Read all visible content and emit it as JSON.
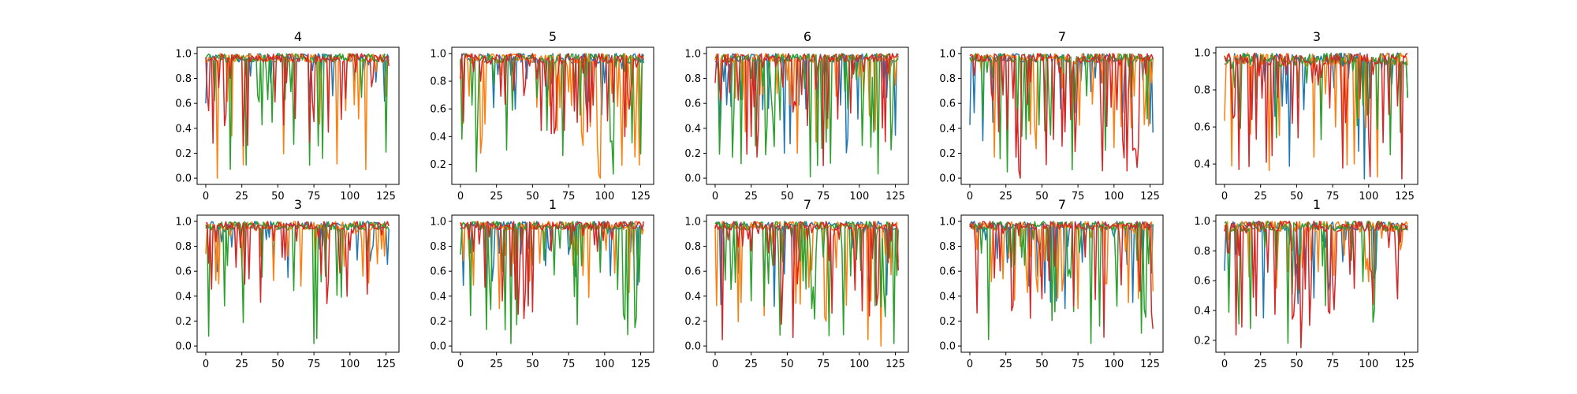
{
  "figure": {
    "background": "#ffffff"
  },
  "series_colors": [
    "#1f77b4",
    "#ff7f0e",
    "#2ca02c",
    "#d62728"
  ],
  "chart_data": [
    {
      "type": "line",
      "title": "4",
      "n_points": 128,
      "xlim": [
        -6,
        134
      ],
      "ylim": [
        -0.05,
        1.05
      ],
      "xticks": [
        0,
        25,
        50,
        75,
        100,
        125
      ],
      "yticks": [
        0.0,
        0.2,
        0.4,
        0.6,
        0.8,
        1.0
      ],
      "ytick_labels": [
        "0.0",
        "0.2",
        "0.4",
        "0.6",
        "0.8",
        "1.0"
      ],
      "grid": false,
      "series": [
        {
          "color": "#1f77b4",
          "min": 0.6,
          "dip_rate": 0.12,
          "seed": 11
        },
        {
          "color": "#ff7f0e",
          "min": 0.0,
          "dip_rate": 0.1,
          "seed": 12
        },
        {
          "color": "#2ca02c",
          "min": 0.07,
          "dip_rate": 0.12,
          "seed": 13
        },
        {
          "color": "#d62728",
          "min": 0.26,
          "dip_rate": 0.18,
          "seed": 14
        }
      ]
    },
    {
      "type": "line",
      "title": "5",
      "n_points": 128,
      "xlim": [
        -6,
        134
      ],
      "ylim": [
        0.055,
        1.045
      ],
      "xticks": [
        0,
        25,
        50,
        75,
        100,
        125
      ],
      "yticks": [
        0.2,
        0.4,
        0.6,
        0.8,
        1.0
      ],
      "ytick_labels": [
        "0.2",
        "0.4",
        "0.6",
        "0.8",
        "1.0"
      ],
      "grid": false,
      "series": [
        {
          "color": "#1f77b4",
          "min": 0.55,
          "dip_rate": 0.14,
          "seed": 21
        },
        {
          "color": "#ff7f0e",
          "min": 0.1,
          "dip_rate": 0.2,
          "seed": 22
        },
        {
          "color": "#2ca02c",
          "min": 0.13,
          "dip_rate": 0.22,
          "seed": 23
        },
        {
          "color": "#d62728",
          "min": 0.4,
          "dip_rate": 0.3,
          "seed": 24
        }
      ]
    },
    {
      "type": "line",
      "title": "6",
      "n_points": 128,
      "xlim": [
        -6,
        134
      ],
      "ylim": [
        -0.05,
        1.05
      ],
      "xticks": [
        0,
        25,
        50,
        75,
        100,
        125
      ],
      "yticks": [
        0.0,
        0.2,
        0.4,
        0.6,
        0.8,
        1.0
      ],
      "ytick_labels": [
        "0.0",
        "0.2",
        "0.4",
        "0.6",
        "0.8",
        "1.0"
      ],
      "grid": false,
      "series": [
        {
          "color": "#1f77b4",
          "min": 0.2,
          "dip_rate": 0.18,
          "seed": 31
        },
        {
          "color": "#ff7f0e",
          "min": 0.2,
          "dip_rate": 0.18,
          "seed": 32
        },
        {
          "color": "#2ca02c",
          "min": 0.01,
          "dip_rate": 0.2,
          "seed": 33
        },
        {
          "color": "#d62728",
          "min": 0.1,
          "dip_rate": 0.3,
          "seed": 34
        }
      ]
    },
    {
      "type": "line",
      "title": "7",
      "n_points": 128,
      "xlim": [
        -6,
        134
      ],
      "ylim": [
        -0.05,
        1.05
      ],
      "xticks": [
        0,
        25,
        50,
        75,
        100,
        125
      ],
      "yticks": [
        0.0,
        0.2,
        0.4,
        0.6,
        0.8,
        1.0
      ],
      "ytick_labels": [
        "0.0",
        "0.2",
        "0.4",
        "0.6",
        "0.8",
        "1.0"
      ],
      "grid": false,
      "series": [
        {
          "color": "#1f77b4",
          "min": 0.3,
          "dip_rate": 0.2,
          "seed": 41
        },
        {
          "color": "#ff7f0e",
          "min": 0.17,
          "dip_rate": 0.18,
          "seed": 42
        },
        {
          "color": "#2ca02c",
          "min": 0.05,
          "dip_rate": 0.2,
          "seed": 43
        },
        {
          "color": "#d62728",
          "min": 0.0,
          "dip_rate": 0.28,
          "seed": 44
        }
      ]
    },
    {
      "type": "line",
      "title": "3",
      "n_points": 128,
      "xlim": [
        -6,
        134
      ],
      "ylim": [
        0.29,
        1.03
      ],
      "xticks": [
        0,
        25,
        50,
        75,
        100,
        125
      ],
      "yticks": [
        0.4,
        0.6,
        0.8,
        1.0
      ],
      "ytick_labels": [
        "0.4",
        "0.6",
        "0.8",
        "1.0"
      ],
      "grid": false,
      "series": [
        {
          "color": "#1f77b4",
          "min": 0.32,
          "dip_rate": 0.18,
          "seed": 51
        },
        {
          "color": "#ff7f0e",
          "min": 0.33,
          "dip_rate": 0.2,
          "seed": 52
        },
        {
          "color": "#2ca02c",
          "min": 0.45,
          "dip_rate": 0.15,
          "seed": 53
        },
        {
          "color": "#d62728",
          "min": 0.32,
          "dip_rate": 0.3,
          "seed": 54
        }
      ]
    },
    {
      "type": "line",
      "title": "3",
      "n_points": 128,
      "xlim": [
        -6,
        134
      ],
      "ylim": [
        -0.05,
        1.05
      ],
      "xticks": [
        0,
        25,
        50,
        75,
        100,
        125
      ],
      "yticks": [
        0.0,
        0.2,
        0.4,
        0.6,
        0.8,
        1.0
      ],
      "ytick_labels": [
        "0.0",
        "0.2",
        "0.4",
        "0.6",
        "0.8",
        "1.0"
      ],
      "grid": false,
      "series": [
        {
          "color": "#1f77b4",
          "min": 0.55,
          "dip_rate": 0.2,
          "seed": 61
        },
        {
          "color": "#ff7f0e",
          "min": 0.48,
          "dip_rate": 0.2,
          "seed": 62
        },
        {
          "color": "#2ca02c",
          "min": 0.02,
          "dip_rate": 0.12,
          "seed": 63
        },
        {
          "color": "#d62728",
          "min": 0.34,
          "dip_rate": 0.25,
          "seed": 64
        }
      ]
    },
    {
      "type": "line",
      "title": "1",
      "n_points": 128,
      "xlim": [
        -6,
        134
      ],
      "ylim": [
        -0.05,
        1.05
      ],
      "xticks": [
        0,
        25,
        50,
        75,
        100,
        125
      ],
      "yticks": [
        0.0,
        0.2,
        0.4,
        0.6,
        0.8,
        1.0
      ],
      "ytick_labels": [
        "0.0",
        "0.2",
        "0.4",
        "0.6",
        "0.8",
        "1.0"
      ],
      "grid": false,
      "series": [
        {
          "color": "#1f77b4",
          "min": 0.4,
          "dip_rate": 0.18,
          "seed": 71
        },
        {
          "color": "#ff7f0e",
          "min": 0.3,
          "dip_rate": 0.22,
          "seed": 72
        },
        {
          "color": "#2ca02c",
          "min": 0.02,
          "dip_rate": 0.22,
          "seed": 73
        },
        {
          "color": "#d62728",
          "min": 0.22,
          "dip_rate": 0.25,
          "seed": 74
        }
      ]
    },
    {
      "type": "line",
      "title": "7",
      "n_points": 128,
      "xlim": [
        -6,
        134
      ],
      "ylim": [
        -0.05,
        1.05
      ],
      "xticks": [
        0,
        25,
        50,
        75,
        100,
        125
      ],
      "yticks": [
        0.0,
        0.2,
        0.4,
        0.6,
        0.8,
        1.0
      ],
      "ytick_labels": [
        "0.0",
        "0.2",
        "0.4",
        "0.6",
        "0.8",
        "1.0"
      ],
      "grid": false,
      "series": [
        {
          "color": "#1f77b4",
          "min": 0.3,
          "dip_rate": 0.18,
          "seed": 81
        },
        {
          "color": "#ff7f0e",
          "min": 0.0,
          "dip_rate": 0.22,
          "seed": 82
        },
        {
          "color": "#2ca02c",
          "min": 0.02,
          "dip_rate": 0.28,
          "seed": 83
        },
        {
          "color": "#d62728",
          "min": 0.05,
          "dip_rate": 0.25,
          "seed": 84
        }
      ]
    },
    {
      "type": "line",
      "title": "7",
      "n_points": 128,
      "xlim": [
        -6,
        134
      ],
      "ylim": [
        -0.05,
        1.05
      ],
      "xticks": [
        0,
        25,
        50,
        75,
        100,
        125
      ],
      "yticks": [
        0.0,
        0.2,
        0.4,
        0.6,
        0.8,
        1.0
      ],
      "ytick_labels": [
        "0.0",
        "0.2",
        "0.4",
        "0.6",
        "0.8",
        "1.0"
      ],
      "grid": false,
      "series": [
        {
          "color": "#1f77b4",
          "min": 0.3,
          "dip_rate": 0.15,
          "seed": 91
        },
        {
          "color": "#ff7f0e",
          "min": 0.3,
          "dip_rate": 0.2,
          "seed": 92
        },
        {
          "color": "#2ca02c",
          "min": 0.02,
          "dip_rate": 0.2,
          "seed": 93
        },
        {
          "color": "#d62728",
          "min": 0.07,
          "dip_rate": 0.25,
          "seed": 94
        }
      ]
    },
    {
      "type": "line",
      "title": "1",
      "n_points": 128,
      "xlim": [
        -6,
        134
      ],
      "ylim": [
        0.12,
        1.04
      ],
      "xticks": [
        0,
        25,
        50,
        75,
        100,
        125
      ],
      "yticks": [
        0.2,
        0.4,
        0.6,
        0.8,
        1.0
      ],
      "ytick_labels": [
        "0.2",
        "0.4",
        "0.6",
        "0.8",
        "1.0"
      ],
      "grid": false,
      "series": [
        {
          "color": "#1f77b4",
          "min": 0.35,
          "dip_rate": 0.16,
          "seed": 101
        },
        {
          "color": "#ff7f0e",
          "min": 0.55,
          "dip_rate": 0.15,
          "seed": 102
        },
        {
          "color": "#2ca02c",
          "min": 0.18,
          "dip_rate": 0.15,
          "seed": 103
        },
        {
          "color": "#d62728",
          "min": 0.15,
          "dip_rate": 0.22,
          "seed": 104
        }
      ]
    }
  ]
}
